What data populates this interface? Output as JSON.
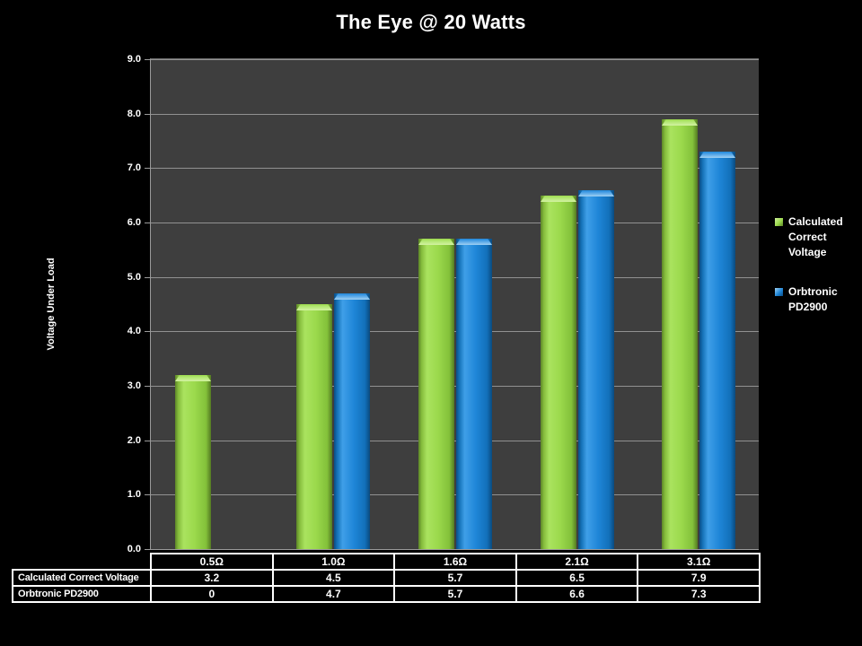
{
  "title": "The Eye @ 20 Watts",
  "y_axis": {
    "title": "Voltage Under Load",
    "tick_labels": [
      "9.0",
      "8.0",
      "7.0",
      "6.0",
      "5.0",
      "4.0",
      "3.0",
      "2.0",
      "1.0",
      "0.0"
    ]
  },
  "legend": {
    "position": "right",
    "items": [
      {
        "label": "Calculated Correct Voltage",
        "color": "#9BD94C"
      },
      {
        "label": "Orbtronic PD2900",
        "color": "#1F86D8"
      }
    ]
  },
  "chart_data": {
    "type": "bar",
    "title": "The Eye @ 20 Watts",
    "categories": [
      "0.5Ω",
      "1.0Ω",
      "1.6Ω",
      "2.1Ω",
      "3.1Ω"
    ],
    "series": [
      {
        "name": "Calculated Correct Voltage",
        "color": "#9BD94C",
        "values": [
          3.2,
          4.5,
          5.7,
          6.5,
          7.9
        ]
      },
      {
        "name": "Orbtronic PD2900",
        "color": "#1F86D8",
        "values": [
          0,
          4.7,
          5.7,
          6.6,
          7.3
        ]
      }
    ],
    "xlabel": "",
    "ylabel": "Voltage Under Load",
    "ylim": [
      0,
      9
    ],
    "ytick_step": 1.0,
    "grid": true,
    "legend_position": "right",
    "plot_background": "#3E3E3E",
    "grid_color": "#919191",
    "page_background": "#000000",
    "data_table_shown": true
  },
  "data_table": {
    "row_labels": [
      "Calculated Correct Voltage",
      "Orbtronic PD2900"
    ],
    "col_headers": [
      "0.5Ω",
      "1.0Ω",
      "1.6Ω",
      "2.1Ω",
      "3.1Ω"
    ],
    "rows": [
      [
        "3.2",
        "4.5",
        "5.7",
        "6.5",
        "7.9"
      ],
      [
        "0",
        "4.7",
        "5.7",
        "6.6",
        "7.3"
      ]
    ]
  }
}
